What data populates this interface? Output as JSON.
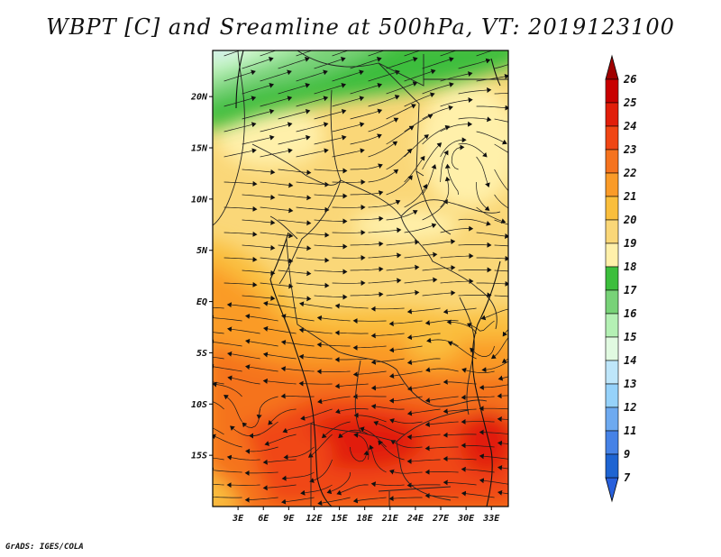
{
  "title": "WBPT [C] and Sreamline at 500hPa, VT: 2019123100",
  "credit": "GrADS: IGES/COLA",
  "map": {
    "lon_range": [
      0,
      35
    ],
    "lat_range": [
      -20,
      24.5
    ],
    "lon_ticks": [
      {
        "value": 3,
        "label": "3E"
      },
      {
        "value": 6,
        "label": "6E"
      },
      {
        "value": 9,
        "label": "9E"
      },
      {
        "value": 12,
        "label": "12E"
      },
      {
        "value": 15,
        "label": "15E"
      },
      {
        "value": 18,
        "label": "18E"
      },
      {
        "value": 21,
        "label": "21E"
      },
      {
        "value": 24,
        "label": "24E"
      },
      {
        "value": 27,
        "label": "27E"
      },
      {
        "value": 30,
        "label": "30E"
      },
      {
        "value": 33,
        "label": "33E"
      }
    ],
    "lat_ticks": [
      {
        "value": 20,
        "label": "20N"
      },
      {
        "value": 15,
        "label": "15N"
      },
      {
        "value": 10,
        "label": "10N"
      },
      {
        "value": 5,
        "label": "5N"
      },
      {
        "value": 0,
        "label": "EQ"
      },
      {
        "value": -5,
        "label": "5S"
      },
      {
        "value": -10,
        "label": "10S"
      },
      {
        "value": -15,
        "label": "15S"
      }
    ],
    "field": "WBPT",
    "units": "C",
    "level": "500hPa"
  },
  "colorbar": {
    "levels": [
      {
        "label": "26",
        "color": "#a50000"
      },
      {
        "label": "25",
        "color": "#c80000"
      },
      {
        "label": "24",
        "color": "#e11e0a"
      },
      {
        "label": "23",
        "color": "#f04614"
      },
      {
        "label": "22",
        "color": "#f5731e"
      },
      {
        "label": "21",
        "color": "#fa9b28"
      },
      {
        "label": "20",
        "color": "#fabe3c"
      },
      {
        "label": "19",
        "color": "#fad778"
      },
      {
        "label": "18",
        "color": "#fff0aa"
      },
      {
        "label": "17",
        "color": "#3cbe3c"
      },
      {
        "label": "16",
        "color": "#78d278"
      },
      {
        "label": "15",
        "color": "#b4f0b4"
      },
      {
        "label": "14",
        "color": "#e1fae1"
      },
      {
        "label": "13",
        "color": "#bee6fa"
      },
      {
        "label": "12",
        "color": "#96d2fa"
      },
      {
        "label": "11",
        "color": "#6eaaf0"
      },
      {
        "label": "9",
        "color": "#4682e6"
      },
      {
        "label": "7",
        "color": "#1e64d2"
      }
    ],
    "bottom_color": "#2860dc",
    "top_color": "#a00000"
  }
}
